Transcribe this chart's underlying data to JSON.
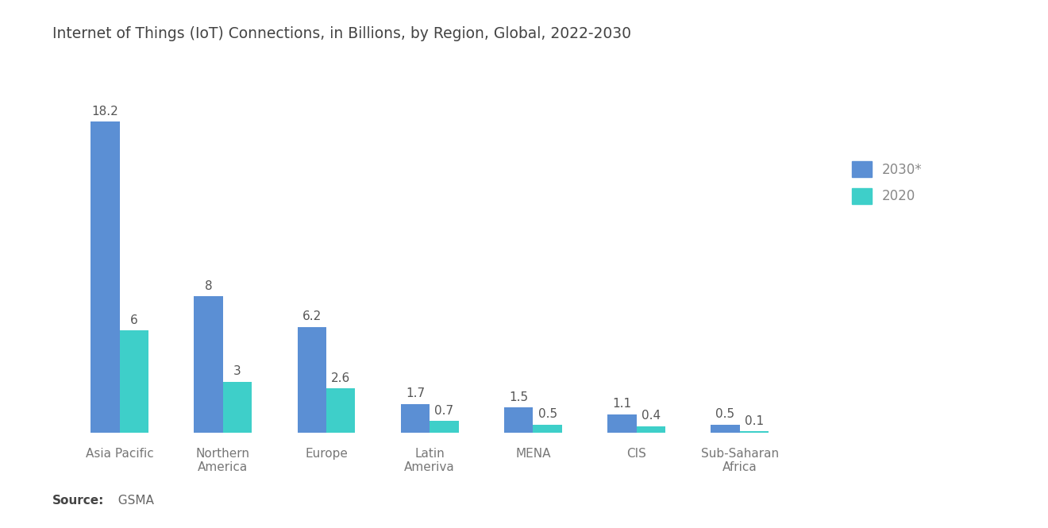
{
  "title": "Internet of Things (IoT) Connections, in Billions, by Region, Global, 2022-2030",
  "categories": [
    "Asia Pacific",
    "Northern\nAmerica",
    "Europe",
    "Latin\nAmeriva",
    "MENA",
    "CIS",
    "Sub-Saharan\nAfrica"
  ],
  "values_2030": [
    18.2,
    8,
    6.2,
    1.7,
    1.5,
    1.1,
    0.5
  ],
  "values_2020": [
    6,
    3,
    2.6,
    0.7,
    0.5,
    0.4,
    0.1
  ],
  "color_2030": "#5B8FD4",
  "color_2020": "#3ECFC9",
  "legend_labels": [
    "2030*",
    "2020"
  ],
  "source_bold": "Source:",
  "source_rest": "  GSMA",
  "bar_width": 0.28,
  "ylim": [
    0,
    21
  ],
  "background_color": "#ffffff",
  "title_fontsize": 13.5,
  "label_fontsize": 11,
  "tick_fontsize": 11,
  "source_fontsize": 11,
  "legend_fontsize": 12
}
